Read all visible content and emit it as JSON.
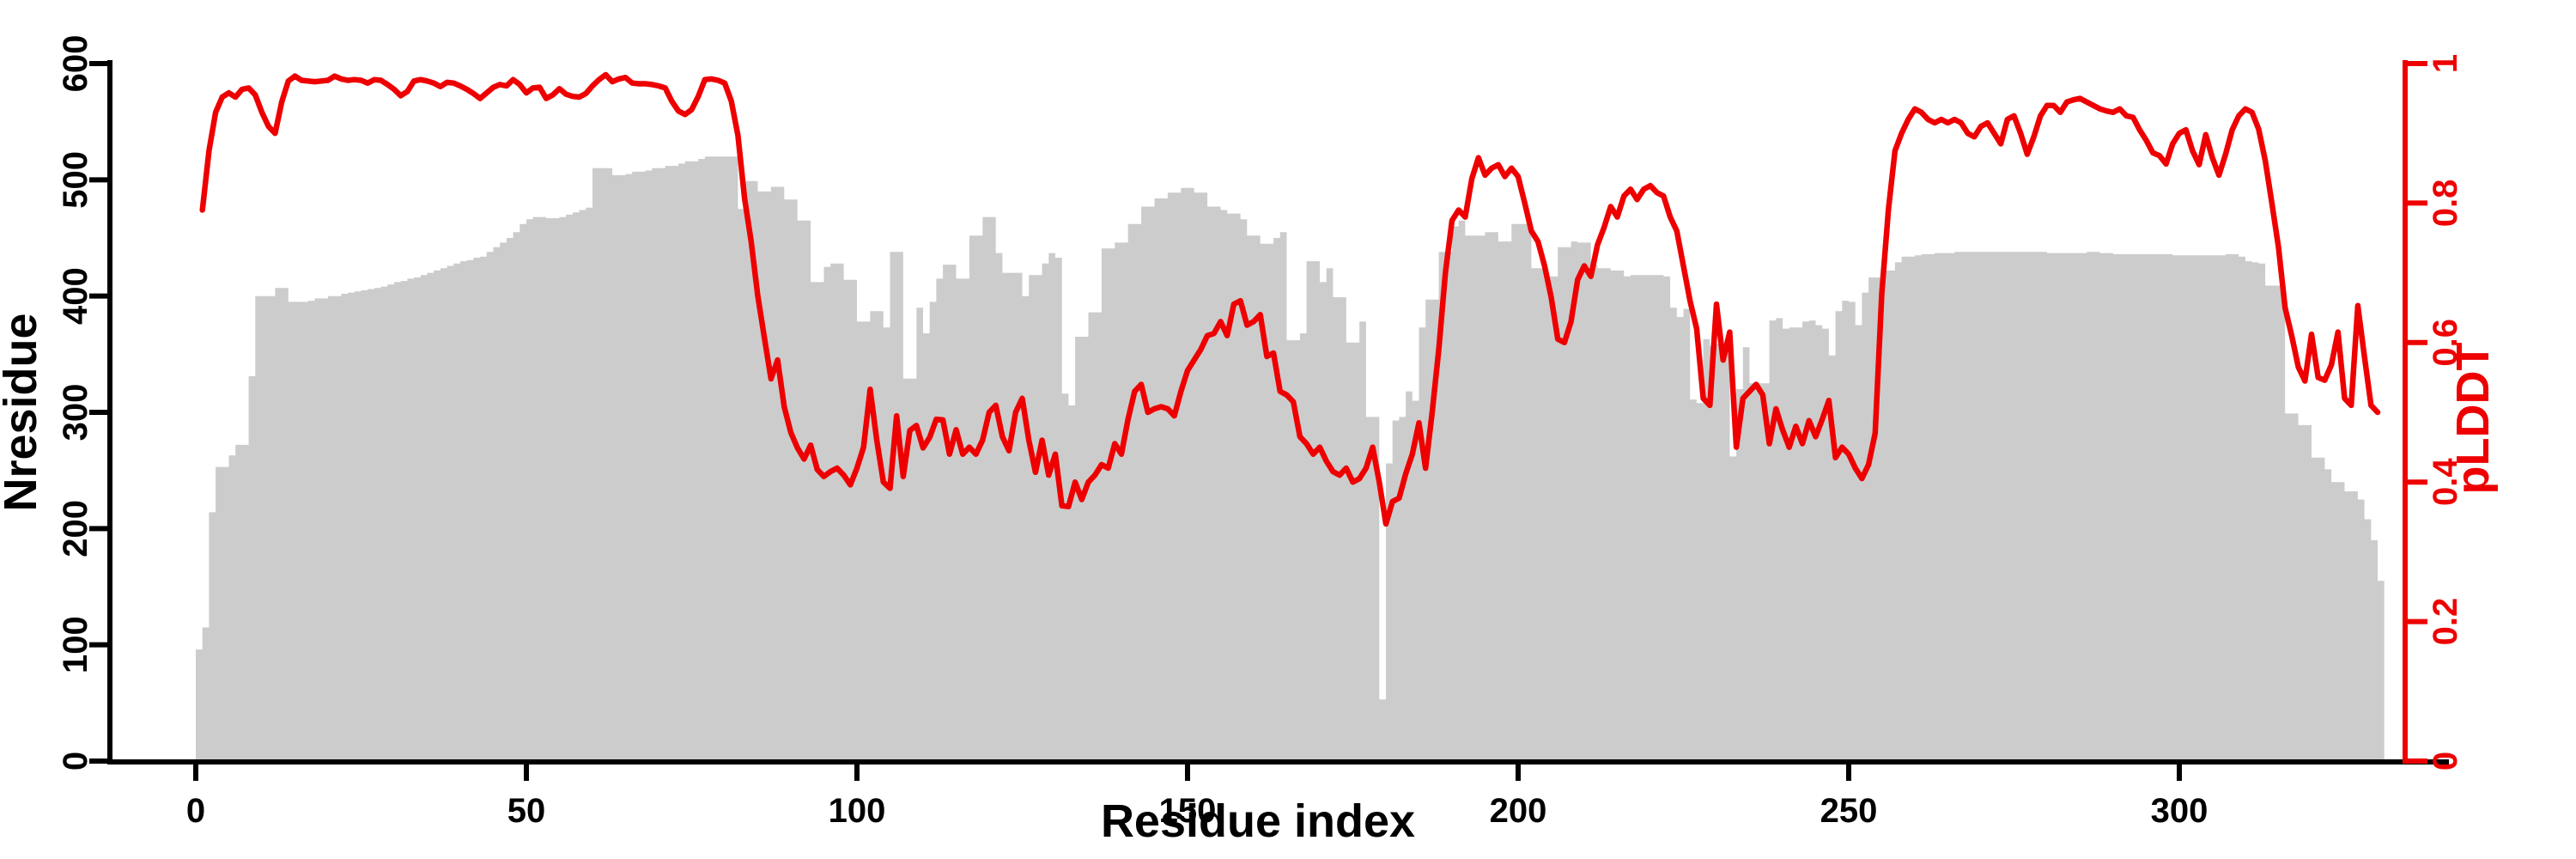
{
  "chart_data": {
    "type": "bar",
    "subtype": "dual-axis bar + line",
    "title": "",
    "xlabel": "Residue index",
    "ylabel_left": "Nresidue",
    "ylabel_right": "pLDDT",
    "background": "#ffffff",
    "bar_color": "#cccccc",
    "line_color": "#ee0000",
    "left_axis_color": "#000000",
    "right_axis_color": "#ee0000",
    "grid": false,
    "legend_position": "none",
    "xlim": [
      0,
      331
    ],
    "ylim_left": [
      0,
      600
    ],
    "ylim_right": [
      0,
      1
    ],
    "x_tick_values": [
      0,
      50,
      100,
      150,
      200,
      250,
      300
    ],
    "x_tick_labels": [
      "0",
      "50",
      "100",
      "150",
      "200",
      "250",
      "300"
    ],
    "left_tick_values": [
      0,
      100,
      200,
      300,
      400,
      500,
      600
    ],
    "left_tick_labels": [
      "0",
      "100",
      "200",
      "300",
      "400",
      "500",
      "600"
    ],
    "right_tick_values": [
      0,
      0.2,
      0.4,
      0.6,
      0.8,
      1
    ],
    "right_tick_labels": [
      "0",
      "0.2",
      "0.4",
      "0.6",
      "0.8",
      "1"
    ],
    "series": [
      {
        "name": "Nresidue",
        "type": "bar",
        "axis": "left",
        "x_start": 0,
        "x_step": 1,
        "values": [
          96,
          115,
          214,
          253,
          253,
          263,
          272,
          272,
          331,
          400,
          400,
          400,
          407,
          407,
          395,
          395,
          395,
          396,
          398,
          398,
          400,
          400,
          402,
          403,
          404,
          405,
          406,
          407,
          408,
          410,
          412,
          413,
          415,
          416,
          418,
          420,
          422,
          424,
          426,
          428,
          430,
          431,
          433,
          434,
          438,
          442,
          446,
          450,
          455,
          462,
          466,
          468,
          468,
          467,
          467,
          468,
          470,
          472,
          474,
          476,
          510,
          510,
          510,
          504,
          504,
          505,
          507,
          507,
          508,
          510,
          510,
          512,
          512,
          514,
          516,
          516,
          518,
          520,
          520,
          520,
          520,
          520,
          475,
          499,
          499,
          490,
          490,
          494,
          494,
          483,
          483,
          465,
          465,
          412,
          412,
          425,
          428,
          428,
          414,
          414,
          378,
          378,
          387,
          387,
          373,
          438,
          438,
          329,
          329,
          390,
          368,
          395,
          415,
          427,
          427,
          415,
          415,
          452,
          452,
          468,
          468,
          437,
          420,
          420,
          420,
          400,
          418,
          418,
          428,
          437,
          433,
          316,
          306,
          365,
          365,
          386,
          386,
          441,
          441,
          446,
          446,
          462,
          462,
          477,
          477,
          484,
          484,
          489,
          489,
          493,
          493,
          489,
          489,
          477,
          477,
          474,
          471,
          471,
          466,
          452,
          452,
          445,
          445,
          450,
          455,
          362,
          362,
          368,
          430,
          430,
          412,
          424,
          399,
          399,
          360,
          360,
          378,
          296,
          296,
          53,
          256,
          293,
          296,
          318,
          310,
          373,
          397,
          397,
          438,
          438,
          460,
          465,
          452,
          452,
          452,
          455,
          455,
          447,
          447,
          462,
          462,
          462,
          424,
          424,
          417,
          417,
          442,
          442,
          447,
          446,
          446,
          427,
          424,
          424,
          422,
          422,
          417,
          418,
          418,
          418,
          418,
          418,
          417,
          390,
          382,
          389,
          311,
          308,
          363,
          357,
          359,
          359,
          262,
          320,
          356,
          325,
          325,
          325,
          379,
          381,
          372,
          373,
          373,
          378,
          379,
          375,
          372,
          349,
          387,
          396,
          395,
          375,
          403,
          416,
          416,
          422,
          422,
          429,
          434,
          434,
          435,
          436,
          436,
          437,
          437,
          437,
          438,
          438,
          438,
          438,
          438,
          438,
          438,
          438,
          438,
          438,
          438,
          438,
          438,
          438,
          437,
          437,
          437,
          437,
          437,
          437,
          438,
          438,
          437,
          437,
          436,
          436,
          436,
          436,
          436,
          436,
          436,
          436,
          436,
          435,
          435,
          435,
          435,
          435,
          435,
          435,
          435,
          436,
          436,
          434,
          430,
          429,
          428,
          409,
          409,
          409,
          299,
          299,
          289,
          289,
          261,
          261,
          251,
          240,
          240,
          232,
          232,
          225,
          208,
          190,
          155
        ]
      },
      {
        "name": "pLDDT",
        "type": "line",
        "axis": "right",
        "x_start": 1,
        "x_step": 1,
        "values": [
          0.79,
          0.875,
          0.93,
          0.952,
          0.958,
          0.952,
          0.963,
          0.965,
          0.955,
          0.93,
          0.91,
          0.9,
          0.945,
          0.975,
          0.982,
          0.976,
          0.975,
          0.974,
          0.975,
          0.976,
          0.982,
          0.978,
          0.976,
          0.977,
          0.976,
          0.972,
          0.977,
          0.976,
          0.97,
          0.963,
          0.954,
          0.96,
          0.975,
          0.977,
          0.975,
          0.972,
          0.967,
          0.973,
          0.972,
          0.968,
          0.963,
          0.957,
          0.95,
          0.958,
          0.966,
          0.97,
          0.968,
          0.977,
          0.97,
          0.958,
          0.965,
          0.966,
          0.95,
          0.955,
          0.964,
          0.956,
          0.953,
          0.952,
          0.957,
          0.968,
          0.977,
          0.984,
          0.974,
          0.978,
          0.98,
          0.972,
          0.971,
          0.971,
          0.97,
          0.968,
          0.965,
          0.946,
          0.932,
          0.927,
          0.934,
          0.953,
          0.977,
          0.978,
          0.976,
          0.972,
          0.946,
          0.897,
          0.807,
          0.745,
          0.667,
          0.607,
          0.548,
          0.575,
          0.508,
          0.471,
          0.449,
          0.433,
          0.453,
          0.418,
          0.408,
          0.415,
          0.42,
          0.41,
          0.396,
          0.42,
          0.45,
          0.533,
          0.46,
          0.4,
          0.391,
          0.495,
          0.408,
          0.474,
          0.481,
          0.449,
          0.464,
          0.49,
          0.489,
          0.44,
          0.475,
          0.44,
          0.45,
          0.44,
          0.46,
          0.5,
          0.51,
          0.465,
          0.445,
          0.5,
          0.52,
          0.46,
          0.414,
          0.46,
          0.41,
          0.44,
          0.366,
          0.365,
          0.4,
          0.375,
          0.4,
          0.41,
          0.425,
          0.42,
          0.455,
          0.44,
          0.49,
          0.53,
          0.54,
          0.5,
          0.505,
          0.508,
          0.505,
          0.495,
          0.53,
          0.56,
          0.575,
          0.59,
          0.61,
          0.613,
          0.63,
          0.61,
          0.655,
          0.66,
          0.625,
          0.63,
          0.64,
          0.58,
          0.585,
          0.53,
          0.525,
          0.515,
          0.465,
          0.455,
          0.44,
          0.45,
          0.43,
          0.415,
          0.41,
          0.42,
          0.4,
          0.405,
          0.42,
          0.45,
          0.4,
          0.34,
          0.372,
          0.377,
          0.412,
          0.44,
          0.485,
          0.42,
          0.5,
          0.59,
          0.7,
          0.775,
          0.79,
          0.78,
          0.835,
          0.865,
          0.84,
          0.85,
          0.855,
          0.838,
          0.85,
          0.838,
          0.8,
          0.76,
          0.745,
          0.71,
          0.665,
          0.605,
          0.6,
          0.63,
          0.69,
          0.71,
          0.695,
          0.74,
          0.765,
          0.795,
          0.78,
          0.81,
          0.82,
          0.805,
          0.82,
          0.825,
          0.815,
          0.81,
          0.78,
          0.76,
          0.71,
          0.66,
          0.62,
          0.52,
          0.51,
          0.655,
          0.575,
          0.615,
          0.45,
          0.52,
          0.53,
          0.54,
          0.525,
          0.455,
          0.505,
          0.475,
          0.45,
          0.48,
          0.455,
          0.488,
          0.465,
          0.49,
          0.517,
          0.435,
          0.45,
          0.44,
          0.42,
          0.405,
          0.425,
          0.47,
          0.67,
          0.79,
          0.875,
          0.9,
          0.92,
          0.935,
          0.93,
          0.92,
          0.915,
          0.92,
          0.915,
          0.92,
          0.915,
          0.9,
          0.895,
          0.91,
          0.915,
          0.9,
          0.885,
          0.92,
          0.925,
          0.9,
          0.87,
          0.895,
          0.925,
          0.94,
          0.94,
          0.93,
          0.945,
          0.948,
          0.95,
          0.945,
          0.94,
          0.935,
          0.932,
          0.93,
          0.935,
          0.925,
          0.923,
          0.905,
          0.89,
          0.872,
          0.868,
          0.856,
          0.885,
          0.9,
          0.905,
          0.875,
          0.855,
          0.898,
          0.865,
          0.84,
          0.87,
          0.905,
          0.925,
          0.935,
          0.93,
          0.906,
          0.861,
          0.8,
          0.737,
          0.65,
          0.61,
          0.565,
          0.545,
          0.612,
          0.55,
          0.546,
          0.568,
          0.615,
          0.52,
          0.51,
          0.653,
          0.58,
          0.51,
          0.5
        ]
      }
    ]
  }
}
